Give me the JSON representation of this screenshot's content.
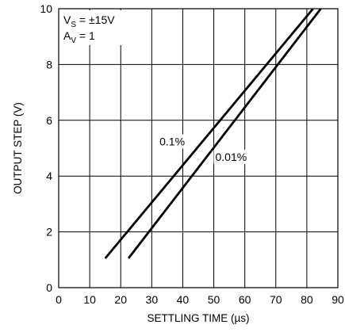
{
  "chart_data": {
    "type": "line",
    "title": "",
    "xlabel": "SETTLING TIME (µs)",
    "ylabel": "OUTPUT STEP (V)",
    "xlim": [
      0,
      90
    ],
    "ylim": [
      0,
      10
    ],
    "x_ticks": [
      "0",
      "10",
      "20",
      "30",
      "40",
      "50",
      "60",
      "70",
      "80",
      "90"
    ],
    "y_ticks": [
      "0",
      "2",
      "4",
      "6",
      "8",
      "10"
    ],
    "grid": true,
    "conditions": {
      "vs": {
        "main": "V",
        "sub": "S",
        "rest": " = ±15V"
      },
      "av": {
        "main": "A",
        "sub": "V",
        "rest": " = 1"
      }
    },
    "series": [
      {
        "name": "0.1%",
        "x": [
          15,
          82
        ],
        "y": [
          1.05,
          10
        ]
      },
      {
        "name": "0.01%",
        "x": [
          22.5,
          84.5
        ],
        "y": [
          1.05,
          10
        ]
      }
    ],
    "line_color": "#000000"
  }
}
